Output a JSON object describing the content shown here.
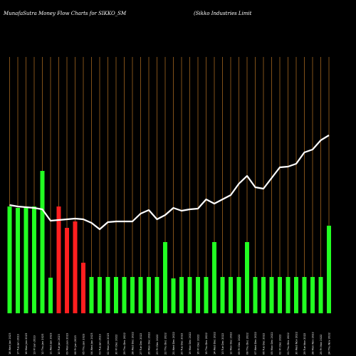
{
  "chart_data": {
    "type": "bar",
    "title": "MunafaSutra  Money Flow  Charts for SIKKO_SM",
    "subtitle": "(Sikko  Industries Limit",
    "categories": [
      "18 Wed Jan 2023",
      "17 Tue Jan 2023",
      "16 Mon Jan 2023",
      "13 Fri Jan 2023",
      "12 Thu Jan 2023",
      "11 Wed Jan 2023",
      "10 Tue Jan 2023",
      "09 Mon Jan 2023",
      "06 Fri Jan 2023",
      "05 Thu Jan 2023",
      "04 Wed Jan 2023",
      "03 Tue Jan 2023",
      "02 Mon Jan 2023",
      "30 Fri Dec 2022",
      "29 Thu Dec 2022",
      "28 Wed Dec 2022",
      "27 Tue Dec 2022",
      "26 Mon Dec 2022",
      "23 Fri Dec 2022",
      "22 Thu Dec 2022",
      "21 Wed Dec 2022",
      "20 Tue Dec 2022",
      "19 Mon Dec 2022",
      "16 Fri Dec 2022",
      "15 Thu Dec 2022",
      "14 Wed Dec 2022",
      "13 Tue Dec 2022",
      "12 Mon Dec 2022",
      "09 Fri Dec 2022",
      "08 Thu Dec 2022",
      "07 Wed Dec 2022",
      "06 Tue Dec 2022",
      "05 Mon Dec 2022",
      "02 Fri Dec 2022",
      "01 Thu Dec 2022",
      "30 Wed Nov 2022",
      "29 Tue Nov 2022",
      "28 Mon Nov 2022",
      "25 Fri Nov 2022",
      "24 Thu Nov 2022"
    ],
    "bar_values": [
      150,
      148,
      150,
      150,
      200,
      50,
      150,
      120,
      129,
      71,
      51,
      51,
      51,
      51,
      51,
      51,
      51,
      51,
      51,
      100,
      49,
      51,
      51,
      51,
      51,
      100,
      51,
      51,
      51,
      100,
      51,
      51,
      51,
      51,
      51,
      51,
      51,
      51,
      51,
      123
    ],
    "bar_colors": [
      "green",
      "green",
      "green",
      "green",
      "green",
      "green",
      "red",
      "red",
      "red",
      "red",
      "green",
      "green",
      "green",
      "green",
      "green",
      "green",
      "green",
      "green",
      "green",
      "green",
      "green",
      "green",
      "green",
      "green",
      "green",
      "green",
      "green",
      "green",
      "green",
      "green",
      "green",
      "green",
      "green",
      "green",
      "green",
      "green",
      "green",
      "green",
      "green",
      "green"
    ],
    "line_values": [
      152,
      150,
      149,
      148,
      146,
      130,
      131,
      132,
      133,
      132,
      127,
      118,
      128,
      129,
      129,
      129,
      140,
      145,
      132,
      138,
      148,
      144,
      146,
      147,
      160,
      154,
      160,
      166,
      182,
      193,
      177,
      175,
      190,
      205,
      206,
      210,
      226,
      230,
      243,
      250
    ],
    "ylim": [
      0,
      360
    ],
    "grid": true,
    "colors": {
      "background": "#000000",
      "grid": "#a06420",
      "green": "#22ff22",
      "red": "#ff1f1f",
      "line": "#ffffff",
      "text": "#ffffff"
    }
  }
}
